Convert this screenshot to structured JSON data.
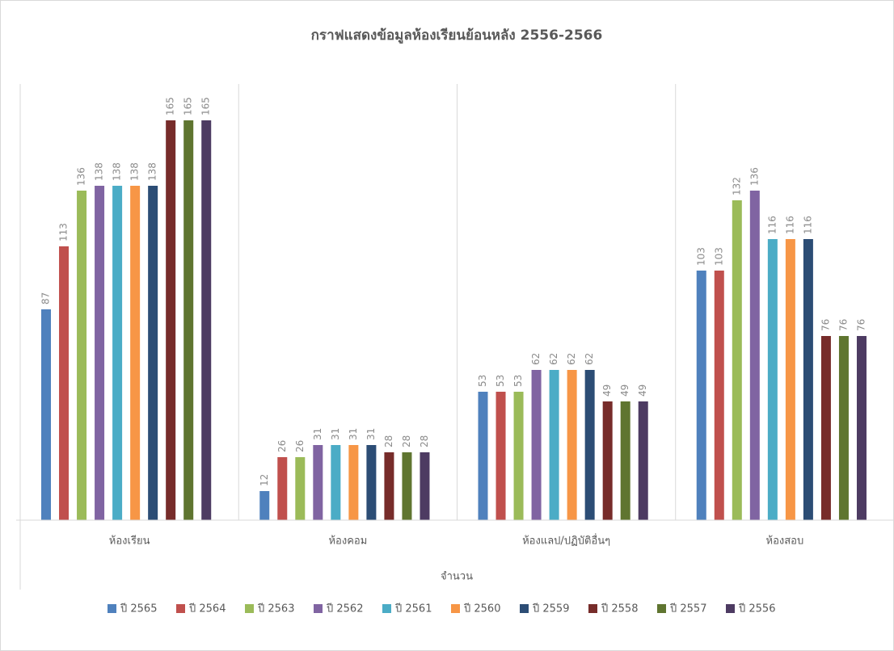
{
  "chart_data": {
    "type": "bar",
    "title": "กราฟแสดงข้อมูลห้องเรียนย้อนหลัง 2556-2566",
    "x_label": "จำนวน",
    "categories": [
      "ห้องเรียน",
      "ห้องคอม",
      "ห้องแลป/ปฏิบัติอื่นๆ",
      "ห้องสอบ"
    ],
    "series": [
      {
        "name": "ปี 2565",
        "color": "#4f81bd",
        "values": [
          87,
          12,
          53,
          103
        ]
      },
      {
        "name": "ปี 2564",
        "color": "#c0504d",
        "values": [
          113,
          26,
          53,
          103
        ]
      },
      {
        "name": "ปี 2563",
        "color": "#9bbb59",
        "values": [
          136,
          26,
          53,
          132
        ]
      },
      {
        "name": "ปี 2562",
        "color": "#8064a2",
        "values": [
          138,
          31,
          62,
          136
        ]
      },
      {
        "name": "ปี 2561",
        "color": "#4bacc6",
        "values": [
          138,
          31,
          62,
          116
        ]
      },
      {
        "name": "ปี 2560",
        "color": "#f79646",
        "values": [
          138,
          31,
          62,
          116
        ]
      },
      {
        "name": "ปี 2559",
        "color": "#2c4d75",
        "values": [
          138,
          31,
          62,
          116
        ]
      },
      {
        "name": "ปี 2558",
        "color": "#772c2a",
        "values": [
          165,
          28,
          49,
          76
        ]
      },
      {
        "name": "ปี 2557",
        "color": "#5f7530",
        "values": [
          165,
          28,
          49,
          76
        ]
      },
      {
        "name": "ปี 2556",
        "color": "#4d3b62",
        "values": [
          165,
          28,
          49,
          76
        ]
      }
    ],
    "ylim": [
      0,
      180
    ],
    "legend": "bottom"
  }
}
